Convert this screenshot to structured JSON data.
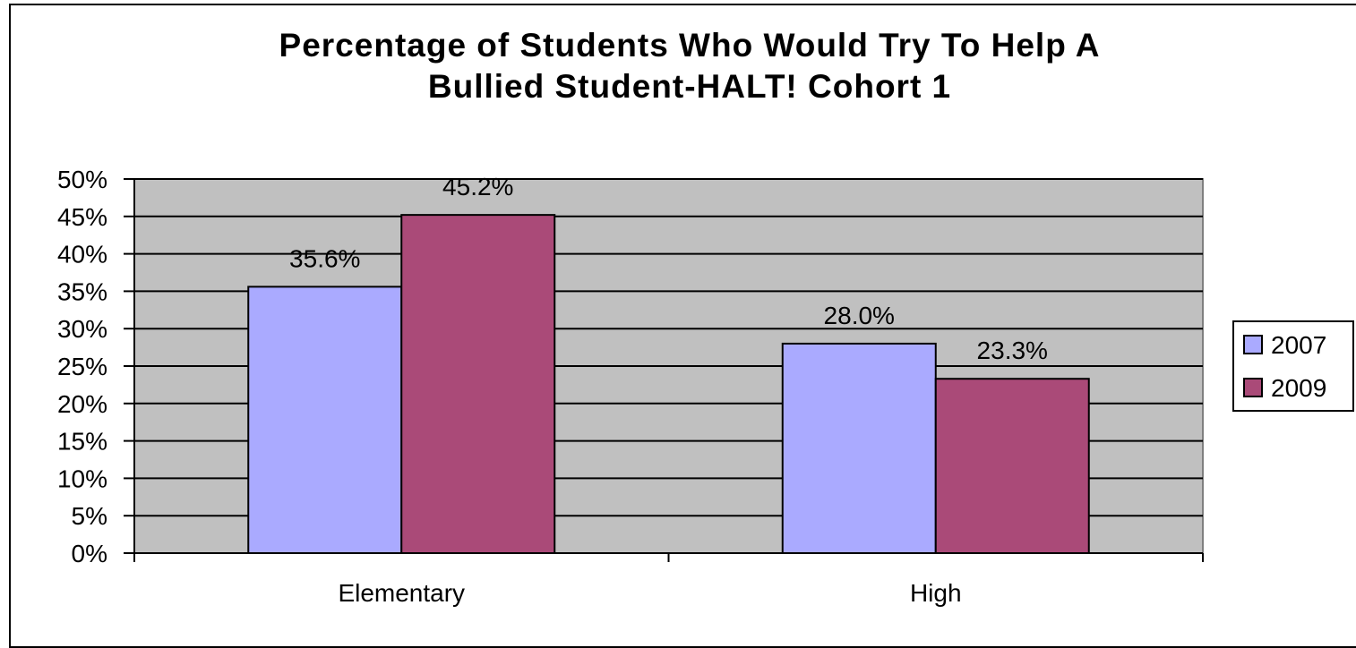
{
  "chart_data": {
    "type": "bar",
    "title_lines": [
      "Percentage of Students Who Would Try To Help A",
      "Bullied Student-HALT! Cohort 1"
    ],
    "categories": [
      "Elementary",
      "High"
    ],
    "series": [
      {
        "name": "2007",
        "values": [
          35.6,
          28.0
        ],
        "labels": [
          "35.6%",
          "28.0%"
        ],
        "color": "#aaaaff"
      },
      {
        "name": "2009",
        "values": [
          45.2,
          23.3
        ],
        "labels": [
          "45.2%",
          "23.3%"
        ],
        "color": "#aa4a78"
      }
    ],
    "ylim": [
      0,
      50
    ],
    "yticks": [
      0,
      5,
      10,
      15,
      20,
      25,
      30,
      35,
      40,
      45,
      50
    ],
    "ytick_labels": [
      "0%",
      "5%",
      "10%",
      "15%",
      "20%",
      "25%",
      "30%",
      "35%",
      "40%",
      "45%",
      "50%"
    ],
    "xlabel": "",
    "ylabel": "",
    "grid": true,
    "legend_position": "right",
    "plot_background": "#c0c0c0",
    "gridline_color": "#000000"
  }
}
